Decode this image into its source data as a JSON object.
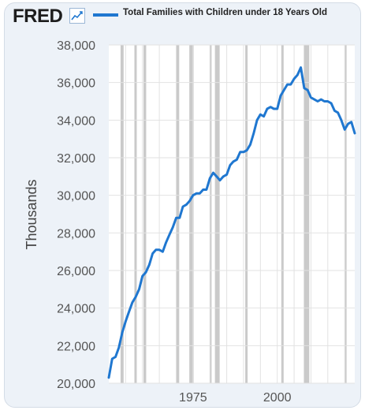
{
  "header": {
    "brand": "FRED",
    "logo_icon": "line-chart-icon",
    "legend_label": "Total Families with Children under 18 Years Old"
  },
  "colors": {
    "series": "#1f77d0",
    "recession": "#9e9e9e",
    "background": "#edf2f8"
  },
  "chart_data": {
    "type": "line",
    "title": "",
    "xlabel": "",
    "ylabel": "Thousands",
    "xlim": [
      1950,
      2023
    ],
    "ylim": [
      20000,
      38000
    ],
    "yticks": [
      20000,
      22000,
      24000,
      26000,
      28000,
      30000,
      32000,
      34000,
      36000,
      38000
    ],
    "ytick_labels": [
      "20,000",
      "22,000",
      "24,000",
      "26,000",
      "28,000",
      "30,000",
      "32,000",
      "34,000",
      "36,000",
      "38,000"
    ],
    "xticks": [
      1975,
      2000
    ],
    "xtick_labels": [
      "1975",
      "2000"
    ],
    "grid": true,
    "recessions": [
      [
        1953.5,
        1954.4
      ],
      [
        1957.6,
        1958.3
      ],
      [
        1960.3,
        1961.1
      ],
      [
        1969.9,
        1970.9
      ],
      [
        1973.9,
        1975.2
      ],
      [
        1980.0,
        1980.5
      ],
      [
        1981.5,
        1982.9
      ],
      [
        1990.5,
        1991.2
      ],
      [
        2001.2,
        2001.9
      ],
      [
        2007.9,
        2009.5
      ],
      [
        2020.1,
        2020.4
      ]
    ],
    "series": [
      {
        "name": "Total Families with Children under 18 Years Old",
        "x": [
          1950,
          1951,
          1952,
          1953,
          1954,
          1955,
          1956,
          1957,
          1958,
          1959,
          1960,
          1961,
          1962,
          1963,
          1964,
          1965,
          1966,
          1967,
          1968,
          1969,
          1970,
          1971,
          1972,
          1973,
          1974,
          1975,
          1976,
          1977,
          1978,
          1979,
          1980,
          1981,
          1982,
          1983,
          1984,
          1985,
          1986,
          1987,
          1988,
          1989,
          1990,
          1991,
          1992,
          1993,
          1994,
          1995,
          1996,
          1997,
          1998,
          1999,
          2000,
          2001,
          2002,
          2003,
          2004,
          2005,
          2006,
          2007,
          2008,
          2009,
          2010,
          2011,
          2012,
          2013,
          2014,
          2015,
          2016,
          2017,
          2018,
          2019,
          2020,
          2021,
          2022,
          2023
        ],
        "y": [
          20300,
          21300,
          21400,
          21900,
          22700,
          23300,
          23800,
          24300,
          24600,
          25000,
          25700,
          25900,
          26300,
          26900,
          27100,
          27100,
          27000,
          27500,
          27900,
          28300,
          28800,
          28800,
          29400,
          29500,
          29700,
          30000,
          30100,
          30100,
          30300,
          30300,
          30900,
          31200,
          31000,
          30800,
          31000,
          31100,
          31600,
          31800,
          31900,
          32300,
          32300,
          32400,
          32700,
          33300,
          34000,
          34300,
          34200,
          34600,
          34700,
          34600,
          34600,
          35300,
          35600,
          35900,
          35900,
          36200,
          36400,
          36800,
          35700,
          35600,
          35200,
          35100,
          35000,
          35100,
          35000,
          35000,
          34900,
          34500,
          34400,
          34000,
          33500,
          33800,
          33900,
          33300
        ]
      }
    ]
  }
}
